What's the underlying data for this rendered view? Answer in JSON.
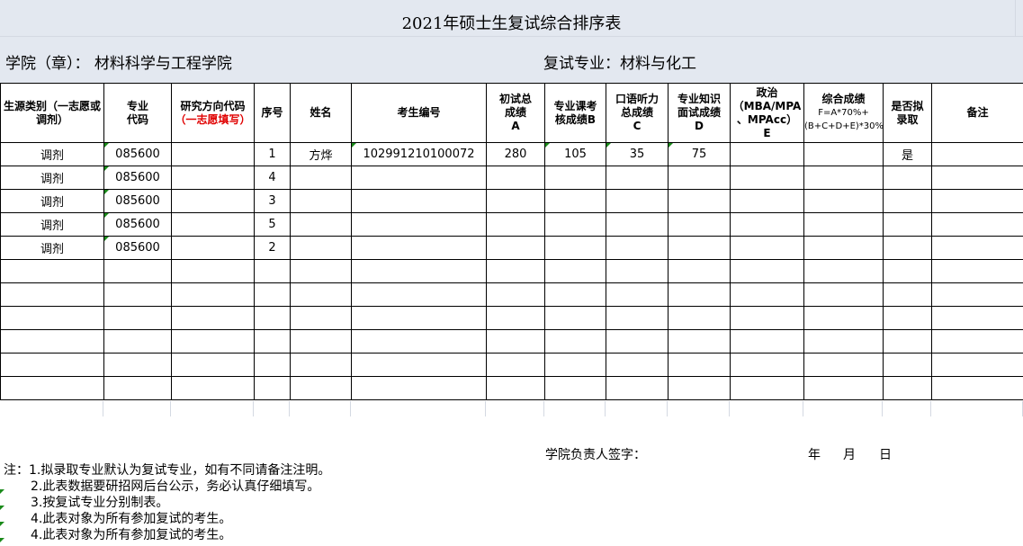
{
  "title": "2021年硕士生复试综合排序表",
  "college": "学院（章）：  材料科学与工程学院",
  "major": "复试专业：材料与化工",
  "headers": {
    "c0": "生源类别（一志愿或调剂）",
    "c1": "专业\n代码",
    "c2a": "研究方向代码",
    "c2b": "（一志愿填写）",
    "c3": "序号",
    "c4": "姓名",
    "c5": "考生编号",
    "c6": "初试总\n成绩\nA",
    "c7": "专业课考\n核成绩B",
    "c8": "口语听力\n总成绩\nC",
    "c9": "专业知识\n面试成绩\nD",
    "c10": "政治\n（MBA/MPA\n、MPAcc）\nE",
    "c11a": "综合成绩",
    "c11b": "F=A*70%+(B+C+D+E)*30%",
    "c12": "是否拟\n录取",
    "c13": "备注"
  },
  "rows": [
    [
      "调剂",
      "085600",
      "",
      "1",
      "方烨",
      "102991210100072",
      "280",
      "105",
      "35",
      "75",
      "",
      "",
      "是",
      ""
    ],
    [
      "调剂",
      "085600",
      "",
      "4",
      "",
      "",
      "",
      "",
      "",
      "",
      "",
      "",
      "",
      ""
    ],
    [
      "调剂",
      "085600",
      "",
      "3",
      "",
      "",
      "",
      "",
      "",
      "",
      "",
      "",
      "",
      ""
    ],
    [
      "调剂",
      "085600",
      "",
      "5",
      "",
      "",
      "",
      "",
      "",
      "",
      "",
      "",
      "",
      ""
    ],
    [
      "调剂",
      "085600",
      "",
      "2",
      "",
      "",
      "",
      "",
      "",
      "",
      "",
      "",
      "",
      ""
    ],
    [
      "",
      "",
      "",
      "",
      "",
      "",
      "",
      "",
      "",
      "",
      "",
      "",
      "",
      ""
    ],
    [
      "",
      "",
      "",
      "",
      "",
      "",
      "",
      "",
      "",
      "",
      "",
      "",
      "",
      ""
    ],
    [
      "",
      "",
      "",
      "",
      "",
      "",
      "",
      "",
      "",
      "",
      "",
      "",
      "",
      ""
    ],
    [
      "",
      "",
      "",
      "",
      "",
      "",
      "",
      "",
      "",
      "",
      "",
      "",
      "",
      ""
    ],
    [
      "",
      "",
      "",
      "",
      "",
      "",
      "",
      "",
      "",
      "",
      "",
      "",
      "",
      ""
    ],
    [
      "",
      "",
      "",
      "",
      "",
      "",
      "",
      "",
      "",
      "",
      "",
      "",
      "",
      ""
    ]
  ],
  "signature": "学院负责人签字：",
  "date": {
    "year": "年",
    "month": "月",
    "day": "日"
  },
  "notes": [
    "注：1.拟录取专业默认为复试专业，如有不同请备注注明。",
    "2.此表数据要研招网后台公示，务必认真仔细填写。",
    "3.按复试专业分别制表。",
    "4.此表对象为所有参加复试的考生。",
    "4.此表对象为所有参加复试的考生。"
  ]
}
